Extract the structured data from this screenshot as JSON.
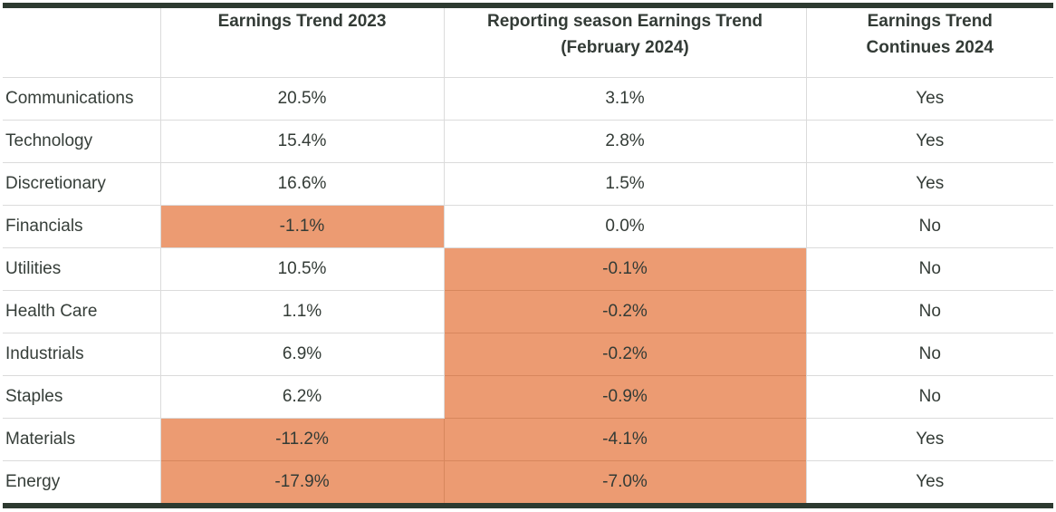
{
  "colors": {
    "highlight_orange": "#EC9B72",
    "highlight_divider": "#D7875D",
    "rule_dark": "#2D3A30",
    "grid_gray": "#DBDBDB",
    "header_text": "#26362C",
    "body_text": "#333B36"
  },
  "chart_data": {
    "type": "table",
    "value_format": "percent_one_decimal",
    "highlight_meaning": "negative earnings trend cells shaded orange",
    "columns": [
      {
        "id": "sector",
        "label_lines": [
          ""
        ]
      },
      {
        "id": "trend_2023",
        "label_lines": [
          "Earnings Trend 2023"
        ]
      },
      {
        "id": "trend_feb_2024",
        "label_lines": [
          "Reporting season Earnings Trend",
          "(February 2024)"
        ]
      },
      {
        "id": "continues_2024",
        "label_lines": [
          "Earnings Trend",
          "Continues 2024"
        ]
      }
    ],
    "rows": [
      {
        "sector": "Communications",
        "trend_2023": 20.5,
        "trend_feb_2024": 3.1,
        "continues_2024": "Yes",
        "highlight": []
      },
      {
        "sector": "Technology",
        "trend_2023": 15.4,
        "trend_feb_2024": 2.8,
        "continues_2024": "Yes",
        "highlight": []
      },
      {
        "sector": "Discretionary",
        "trend_2023": 16.6,
        "trend_feb_2024": 1.5,
        "continues_2024": "Yes",
        "highlight": []
      },
      {
        "sector": "Financials",
        "trend_2023": -1.1,
        "trend_feb_2024": 0.0,
        "continues_2024": "No",
        "highlight": [
          "trend_2023"
        ]
      },
      {
        "sector": "Utilities",
        "trend_2023": 10.5,
        "trend_feb_2024": -0.1,
        "continues_2024": "No",
        "highlight": [
          "trend_feb_2024"
        ]
      },
      {
        "sector": "Health Care",
        "trend_2023": 1.1,
        "trend_feb_2024": -0.2,
        "continues_2024": "No",
        "highlight": [
          "trend_feb_2024"
        ]
      },
      {
        "sector": "Industrials",
        "trend_2023": 6.9,
        "trend_feb_2024": -0.2,
        "continues_2024": "No",
        "highlight": [
          "trend_feb_2024"
        ]
      },
      {
        "sector": "Staples",
        "trend_2023": 6.2,
        "trend_feb_2024": -0.9,
        "continues_2024": "No",
        "highlight": [
          "trend_feb_2024"
        ]
      },
      {
        "sector": "Materials",
        "trend_2023": -11.2,
        "trend_feb_2024": -4.1,
        "continues_2024": "Yes",
        "highlight": [
          "trend_2023",
          "trend_feb_2024"
        ]
      },
      {
        "sector": "Energy",
        "trend_2023": -17.9,
        "trend_feb_2024": -7.0,
        "continues_2024": "Yes",
        "highlight": [
          "trend_2023",
          "trend_feb_2024"
        ]
      }
    ]
  }
}
